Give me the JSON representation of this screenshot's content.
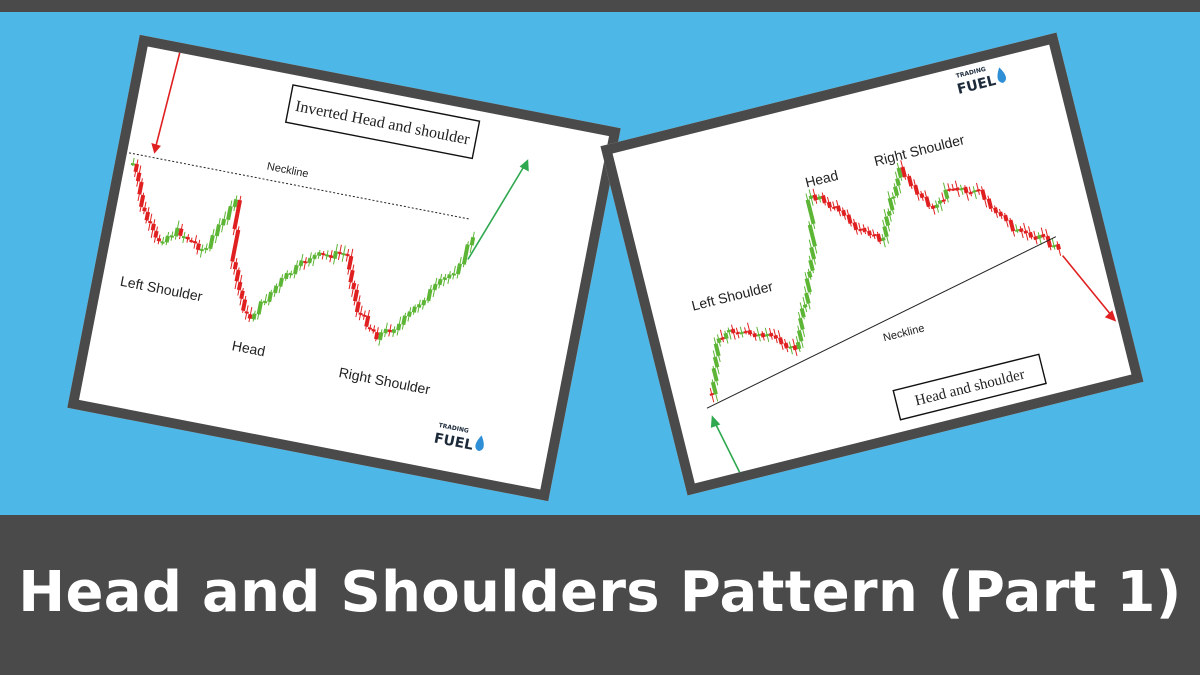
{
  "banner": {
    "title": "Head and Shoulders Pattern (Part 1)"
  },
  "inverted_card": {
    "title": "Inverted Head and shoulder",
    "neckline": "Neckline",
    "left_shoulder": "Left Shoulder",
    "head": "Head",
    "right_shoulder": "Right Shoulder",
    "logo_small": "TRADING",
    "logo_big": "FUEL"
  },
  "hs_card": {
    "title": "Head and shoulder",
    "neckline": "Neckline",
    "left_shoulder": "Left Shoulder",
    "head": "Head",
    "right_shoulder": "Right Shoulder",
    "logo_small": "TRADING",
    "logo_big": "FUEL"
  },
  "colors": {
    "blue": "#4db8e8",
    "dark": "#4a4a4a",
    "bull": "#5cb535",
    "bear": "#e02020"
  }
}
